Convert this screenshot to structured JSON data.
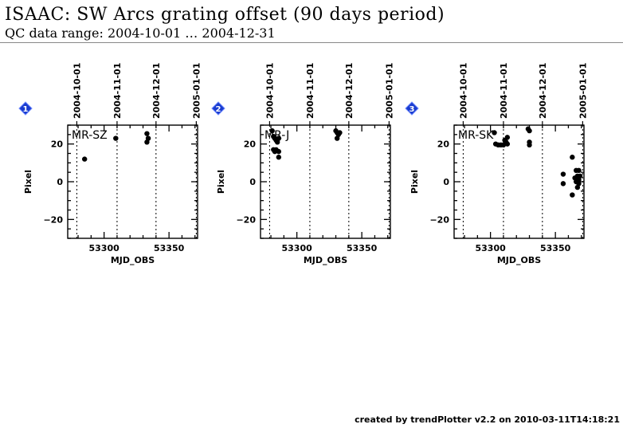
{
  "header": {
    "title": "ISAAC: SW Arcs grating offset (90 days period)",
    "subtitle": "QC data range: 2004-10-01 … 2004-12-31"
  },
  "footer": {
    "text": "created by trendPlotter v2.2 on 2010-03-11T14:18:21"
  },
  "colors": {
    "marker": "#1a3ccf",
    "points": "#000000",
    "axes": "#000000"
  },
  "chart_data": [
    {
      "type": "scatter",
      "index_label": "1",
      "label": "MR-SZ",
      "xlabel": "MJD_OBS",
      "ylabel": "Pixel",
      "xlim": [
        53272,
        53372
      ],
      "ylim": [
        -30,
        30
      ],
      "x_ticks": [
        53300,
        53350
      ],
      "y_ticks": [
        -20,
        0,
        20
      ],
      "date_ticks": [
        {
          "mjd": 53279,
          "label": "2004-10-01"
        },
        {
          "mjd": 53310,
          "label": "2004-11-01"
        },
        {
          "mjd": 53340,
          "label": "2004-12-01"
        },
        {
          "mjd": 53371,
          "label": "2005-01-01"
        }
      ],
      "points": [
        {
          "x": 53285,
          "y": 12
        },
        {
          "x": 53309,
          "y": 23
        },
        {
          "x": 53333,
          "y": 25.5
        },
        {
          "x": 53334,
          "y": 23
        },
        {
          "x": 53333,
          "y": 21
        }
      ]
    },
    {
      "type": "scatter",
      "index_label": "2",
      "label": "MR-J",
      "xlabel": "MJD_OBS",
      "ylabel": "Pixel",
      "xlim": [
        53272,
        53372
      ],
      "ylim": [
        -30,
        30
      ],
      "x_ticks": [
        53300,
        53350
      ],
      "y_ticks": [
        -20,
        0,
        20
      ],
      "date_ticks": [
        {
          "mjd": 53279,
          "label": "2004-10-01"
        },
        {
          "mjd": 53310,
          "label": "2004-11-01"
        },
        {
          "mjd": 53340,
          "label": "2004-12-01"
        },
        {
          "mjd": 53371,
          "label": "2005-01-01"
        }
      ],
      "points": [
        {
          "x": 53281,
          "y": 27
        },
        {
          "x": 53282,
          "y": 24
        },
        {
          "x": 53283,
          "y": 23
        },
        {
          "x": 53284,
          "y": 22
        },
        {
          "x": 53285,
          "y": 21
        },
        {
          "x": 53286,
          "y": 23
        },
        {
          "x": 53282,
          "y": 17
        },
        {
          "x": 53283,
          "y": 16
        },
        {
          "x": 53284,
          "y": 17
        },
        {
          "x": 53286,
          "y": 16
        },
        {
          "x": 53286,
          "y": 13
        },
        {
          "x": 53330,
          "y": 27
        },
        {
          "x": 53331,
          "y": 26
        },
        {
          "x": 53332,
          "y": 25
        },
        {
          "x": 53333,
          "y": 26
        },
        {
          "x": 53331,
          "y": 23
        }
      ]
    },
    {
      "type": "scatter",
      "index_label": "3",
      "label": "MR-SK",
      "xlabel": "MJD_OBS",
      "ylabel": "Pixel",
      "xlim": [
        53272,
        53372
      ],
      "ylim": [
        -30,
        30
      ],
      "x_ticks": [
        53300,
        53350
      ],
      "y_ticks": [
        -20,
        0,
        20
      ],
      "date_ticks": [
        {
          "mjd": 53279,
          "label": "2004-10-01"
        },
        {
          "mjd": 53310,
          "label": "2004-11-01"
        },
        {
          "mjd": 53340,
          "label": "2004-12-01"
        },
        {
          "mjd": 53371,
          "label": "2005-01-01"
        }
      ],
      "points": [
        {
          "x": 53303,
          "y": 26
        },
        {
          "x": 53304,
          "y": 20
        },
        {
          "x": 53306,
          "y": 19.5
        },
        {
          "x": 53308,
          "y": 19.5
        },
        {
          "x": 53310,
          "y": 19.5
        },
        {
          "x": 53311,
          "y": 22
        },
        {
          "x": 53312,
          "y": 21
        },
        {
          "x": 53313,
          "y": 23.5
        },
        {
          "x": 53313,
          "y": 20
        },
        {
          "x": 53329,
          "y": 28
        },
        {
          "x": 53330,
          "y": 27
        },
        {
          "x": 53330,
          "y": 21
        },
        {
          "x": 53330,
          "y": 19.5
        },
        {
          "x": 53356,
          "y": 4
        },
        {
          "x": 53356,
          "y": -1
        },
        {
          "x": 53363,
          "y": 13
        },
        {
          "x": 53363,
          "y": -7
        },
        {
          "x": 53365,
          "y": 2
        },
        {
          "x": 53366,
          "y": 6
        },
        {
          "x": 53366,
          "y": 0
        },
        {
          "x": 53367,
          "y": 3
        },
        {
          "x": 53367,
          "y": -3
        },
        {
          "x": 53368,
          "y": 6
        },
        {
          "x": 53368,
          "y": 1
        },
        {
          "x": 53368,
          "y": -1
        },
        {
          "x": 53369,
          "y": 3
        }
      ]
    }
  ]
}
